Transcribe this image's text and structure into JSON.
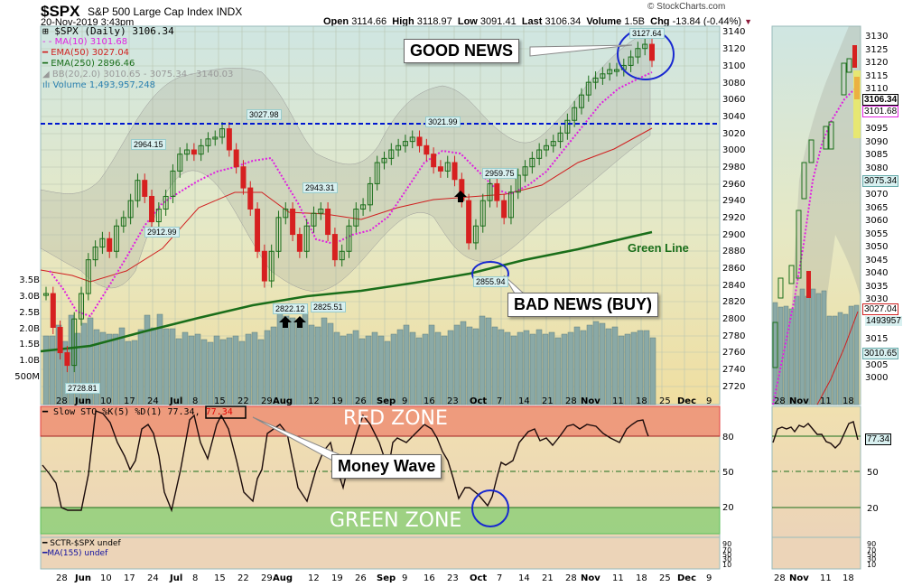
{
  "header": {
    "symbol": "$SPX",
    "name": "S&P 500 Large Cap Index",
    "exchange": "INDX",
    "datetime": "20-Nov-2019 3:43pm",
    "copyright": "© StockCharts.com",
    "open_label": "Open",
    "open": "3114.66",
    "high_label": "High",
    "high": "3118.97",
    "low_label": "Low",
    "low": "3091.41",
    "last_label": "Last",
    "last": "3106.34",
    "volume_label": "Volume",
    "volume": "1.5B",
    "chg_label": "Chg",
    "chg": "-13.84 (-0.44%)"
  },
  "legend": {
    "price": "$SPX (Daily) 3106.34",
    "ma10": "MA(10) 3101.68",
    "ema50": "EMA(50) 3027.04",
    "ema250": "EMA(250) 2896.46",
    "bb": "BB(20,2.0) 3010.65 - 3075.34 - 3140.03",
    "volume": "Volume 1,493,957,248"
  },
  "annotations": {
    "good_news": "GOOD NEWS",
    "bad_news": "BAD NEWS (BUY)",
    "green_line": "Green Line",
    "money_wave": "Money Wave",
    "red_zone": "RED ZONE",
    "green_zone": "GREEN ZONE"
  },
  "price_labels": [
    "3027.98",
    "2964.15",
    "2912.99",
    "2943.31",
    "3021.99",
    "2959.75",
    "2855.94",
    "3127.64",
    "2822.12",
    "2825.51",
    "2728.81"
  ],
  "sto_legend": {
    "text": "Slow STO %K(5) %D(1) 77.34,",
    "value": "77.34"
  },
  "sctr_legend": {
    "sctr": "SCTR-$SPX undef",
    "ma": "MA(155) undef"
  },
  "side_panel": {
    "last": "3106.34",
    "ma10": "3101.68",
    "bb_mid": "3075.34",
    "ema50": "3027.04",
    "volume": "1493957",
    "bb_low": "3010.65",
    "sto": "77.34",
    "y_ticks": [
      "3130",
      "3125",
      "3120",
      "3115",
      "3110",
      "3095",
      "3090",
      "3085",
      "3080",
      "3070",
      "3065",
      "3060",
      "3055",
      "3050",
      "3045",
      "3040",
      "3035",
      "3030",
      "3015",
      "3005",
      "3000"
    ],
    "x_ticks": [
      "28",
      "Nov",
      "11",
      "18"
    ]
  },
  "chart_data": [
    {
      "type": "candlestick",
      "title": "$SPX S&P 500 Large Cap Index (Daily)",
      "x_ticks": [
        "28",
        "Jun",
        "10",
        "17",
        "24",
        "Jul",
        "8",
        "15",
        "22",
        "29",
        "Aug",
        "12",
        "19",
        "26",
        "Sep",
        "9",
        "16",
        "23",
        "Oct",
        "7",
        "14",
        "21",
        "28",
        "Nov",
        "11",
        "18",
        "25",
        "Dec",
        "9"
      ],
      "y_ticks": [
        3140,
        3120,
        3100,
        3080,
        3060,
        3040,
        3020,
        3000,
        2980,
        2960,
        2940,
        2920,
        2900,
        2880,
        2860,
        2840,
        2820,
        2800,
        2780,
        2760,
        2740,
        2720
      ],
      "ylim": [
        2710,
        3148
      ],
      "volume_ticks": [
        "3.5B",
        "3.0B",
        "2.5B",
        "2.0B",
        "1.5B",
        "1.0B",
        "500M"
      ],
      "horizontal_line": 3027,
      "close_series_approx": [
        2830,
        2790,
        2760,
        2745,
        2800,
        2830,
        2870,
        2885,
        2895,
        2880,
        2910,
        2920,
        2940,
        2964,
        2945,
        2915,
        2930,
        2945,
        2975,
        2995,
        3000,
        2995,
        3005,
        3013,
        3015,
        3025,
        3000,
        2980,
        2955,
        2930,
        2880,
        2845,
        2880,
        2920,
        2930,
        2900,
        2880,
        2910,
        2925,
        2930,
        2900,
        2870,
        2880,
        2910,
        2930,
        2935,
        2960,
        2985,
        2990,
        3000,
        3005,
        3010,
        3015,
        3005,
        2995,
        2980,
        2975,
        2985,
        2965,
        2940,
        2890,
        2910,
        2940,
        2960,
        2940,
        2920,
        2950,
        2970,
        2980,
        2990,
        3000,
        3005,
        3010,
        3020,
        3035,
        3050,
        3065,
        3080,
        3085,
        3090,
        3095,
        3095,
        3100,
        3110,
        3120,
        3125,
        3106
      ],
      "series": [
        {
          "name": "MA(10)",
          "last": 3101.68,
          "color": "#e020e0"
        },
        {
          "name": "EMA(50)",
          "last": 3027.04,
          "color": "#d02020"
        },
        {
          "name": "EMA(250)",
          "last": 2896.46,
          "color": "#1a6e1a"
        },
        {
          "name": "BB(20,2.0)",
          "lower": 3010.65,
          "mid": 3075.34,
          "upper": 3140.03
        },
        {
          "name": "Volume",
          "last": 1493957248
        }
      ],
      "annotations": [
        {
          "text": "3127.64",
          "type": "high"
        },
        {
          "text": "2855.94",
          "type": "low"
        },
        {
          "text": "2728.81",
          "type": "low"
        }
      ]
    },
    {
      "type": "line",
      "title": "Slow STO %K(5) %D(1)",
      "y_ticks": [
        80,
        50,
        20
      ],
      "ylim": [
        0,
        100
      ],
      "last": 77.34,
      "zones": [
        {
          "name": "RED ZONE",
          "from": 80,
          "to": 100
        },
        {
          "name": "GREEN ZONE",
          "from": 0,
          "to": 20
        }
      ],
      "values_approx": [
        55,
        45,
        20,
        18,
        18,
        95,
        90,
        80,
        60,
        40,
        35,
        60,
        85,
        88,
        50,
        30,
        45,
        85,
        95,
        70,
        60,
        85,
        95,
        60,
        30,
        15,
        40,
        85,
        92,
        90,
        75,
        50,
        20,
        15,
        30,
        85,
        90,
        60,
        35,
        70,
        50,
        20,
        45,
        80,
        93,
        60,
        30,
        60,
        85,
        88,
        90,
        95,
        95,
        92,
        75,
        65,
        55,
        40,
        25,
        30,
        33,
        28,
        22,
        18,
        55,
        52,
        58,
        70,
        75,
        83,
        86,
        72,
        75,
        65,
        70,
        83,
        85,
        83,
        87,
        86,
        82,
        80,
        72,
        70,
        78,
        88,
        77
      ]
    }
  ]
}
